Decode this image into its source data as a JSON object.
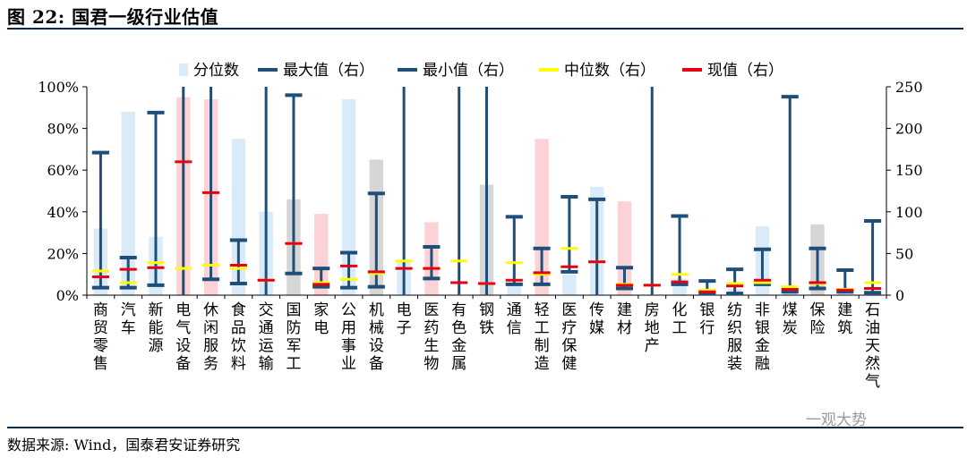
{
  "figure": {
    "title": "图 22: 国君一级行业估值",
    "source": "数据来源: Wind，国泰君安证券研究",
    "watermark": "一观大势"
  },
  "colors": {
    "pct_default": "#d9ebf8",
    "pct_pink": "#fbd3d6",
    "pct_gray": "#d6d6d6",
    "max_line": "#1f4e79",
    "min_line": "#1f4e79",
    "median": "#ffff00",
    "current": "#e60012",
    "axis": "#000000"
  },
  "chart_data": {
    "type": "bar",
    "title": "图 22: 国君一级行业估值",
    "legend": {
      "position": "top",
      "entries": [
        "分位数",
        "最大值（右）",
        "最小值（右）",
        "中位数（右）",
        "现值（右）"
      ]
    },
    "left_axis": {
      "label": "",
      "range": [
        0,
        100
      ],
      "ticks": [
        "0%",
        "20%",
        "40%",
        "60%",
        "80%",
        "100%"
      ]
    },
    "right_axis": {
      "label": "",
      "range": [
        0,
        250
      ],
      "ticks": [
        "0",
        "50",
        "100",
        "150",
        "200",
        "250"
      ]
    },
    "categories": [
      "商贸零售",
      "汽车",
      "新能源",
      "电气设备",
      "休闲服务",
      "食品饮料",
      "交通运输",
      "国防军工",
      "家电",
      "公用事业",
      "机械设备",
      "电子",
      "医药生物",
      "有色金属",
      "钢铁",
      "通信",
      "轻工制造",
      "医疗保健",
      "传媒",
      "建材",
      "房地产",
      "化工",
      "银行",
      "纺织服装",
      "非银金融",
      "煤炭",
      "保险",
      "建筑",
      "石油天然气"
    ],
    "bar_color_group": [
      "default",
      "default",
      "default",
      "pink",
      "pink",
      "default",
      "default",
      "gray",
      "pink",
      "default",
      "gray",
      "default",
      "pink",
      "default",
      "gray",
      "default",
      "pink",
      "default",
      "default",
      "pink",
      "default",
      "default",
      "default",
      "default",
      "default",
      "default",
      "gray",
      "default",
      "default"
    ],
    "series": [
      {
        "name": "分位数",
        "axis": "left",
        "values": [
          32,
          88,
          28,
          95,
          94,
          75,
          40,
          46,
          39,
          94,
          65,
          16,
          35,
          0,
          53,
          6,
          75,
          10,
          52,
          45,
          0,
          8,
          2,
          3,
          33,
          1,
          34,
          2,
          1
        ]
      },
      {
        "name": "最大值（右）",
        "axis": "right",
        "values": [
          171,
          45,
          219,
          250,
          250,
          66,
          250,
          240,
          32,
          51,
          122,
          250,
          58,
          250,
          250,
          94,
          56,
          118,
          115,
          33,
          250,
          95,
          17,
          31,
          55,
          238,
          56,
          30,
          89
        ]
      },
      {
        "name": "最小值（右）",
        "axis": "right",
        "values": [
          9,
          9,
          12,
          0,
          19,
          14,
          0,
          26,
          10,
          9,
          10,
          0,
          20,
          0,
          0,
          13,
          13,
          28,
          0,
          8,
          0,
          13,
          2,
          2,
          13,
          4,
          8,
          4,
          3
        ]
      },
      {
        "name": "中位数（右）",
        "axis": "right",
        "values": [
          29,
          15,
          39,
          32,
          36,
          32,
          18,
          62,
          15,
          19,
          26,
          41,
          32,
          41,
          14,
          39,
          25,
          56,
          40,
          13,
          12,
          25,
          6,
          14,
          15,
          10,
          14,
          7,
          15
        ]
      },
      {
        "name": "现值（右）",
        "axis": "right",
        "values": [
          22,
          31,
          33,
          160,
          123,
          36,
          18,
          62,
          13,
          35,
          28,
          32,
          32,
          15,
          14,
          18,
          27,
          34,
          40,
          12,
          12,
          16,
          4,
          11,
          18,
          7,
          15,
          6,
          8
        ]
      }
    ]
  }
}
